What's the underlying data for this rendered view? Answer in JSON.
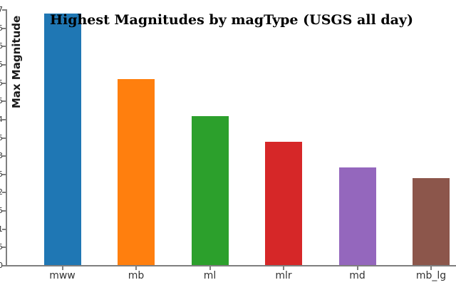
{
  "chart_data": {
    "type": "bar",
    "title": "Highest Magnitudes by magType (USGS all day)",
    "xlabel": "",
    "ylabel": "Max Magnitude",
    "categories": [
      "mww",
      "mb",
      "ml",
      "mlr",
      "md",
      "mb_lg"
    ],
    "values": [
      6.9,
      5.1,
      4.1,
      3.4,
      2.7,
      2.4
    ],
    "bar_colors": [
      "#1f77b4",
      "#ff7f0e",
      "#2ca02c",
      "#d62728",
      "#9467bd",
      "#8c564b"
    ],
    "ylim": [
      0,
      7
    ],
    "ytick_step": 0.5,
    "grid": false,
    "legend": null,
    "axis_color": "#7f7f7f",
    "tick_label_color": "#333333"
  }
}
